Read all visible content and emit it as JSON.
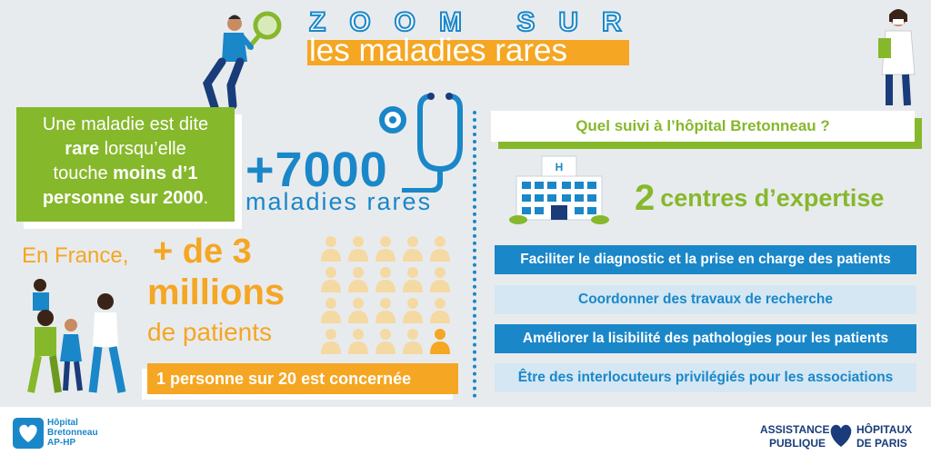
{
  "header": {
    "zoom": "ZOOM SUR",
    "title": "les maladies rares"
  },
  "definition": {
    "line1": "Une maladie est dite",
    "rare": "rare",
    "line2_rest": " lorsqu’elle",
    "line3": "touche ",
    "moins": "moins d’1",
    "personne": "personne sur 2000",
    "period": "."
  },
  "stat_7000": {
    "value": "+7000",
    "label": "maladies rares"
  },
  "france": {
    "prefix": "En France,",
    "value": "+ de 3",
    "unit": "millions",
    "suffix": "de patients",
    "ratio_text": "1  personne sur 20 est concernée",
    "people_total": 20,
    "people_highlighted": 1
  },
  "right_panel": {
    "question": "Quel suivi à l’hôpital Bretonneau ?",
    "centres_number": "2",
    "centres_label": "centres d’expertise",
    "missions": [
      "Faciliter le diagnostic et la prise en charge des patients",
      "Coordonner des travaux de recherche",
      "Améliorer la lisibilité des pathologies pour les patients",
      "Être des interlocuteurs privilégiés pour les associations"
    ]
  },
  "footer": {
    "left_logo_line1": "Hôpital",
    "left_logo_line2": "Bretonneau",
    "left_logo_line3": "AP-HP",
    "aphp_left1": "ASSISTANCE",
    "aphp_left2": "PUBLIQUE",
    "aphp_right1": "HÔPITAUX",
    "aphp_right2": "DE PARIS"
  },
  "colors": {
    "blue": "#1a87c9",
    "green": "#86b82b",
    "orange": "#f5a623",
    "light_blue": "#d4e7f3",
    "background": "#e8ebed"
  }
}
